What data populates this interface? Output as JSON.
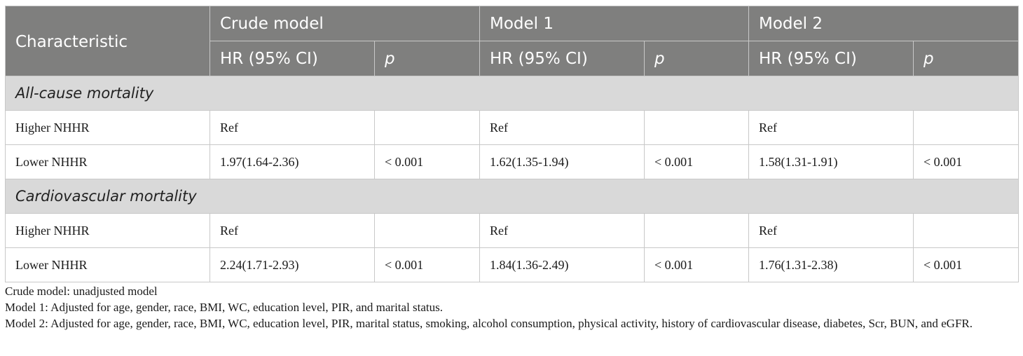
{
  "header": {
    "characteristic": "Characteristic",
    "groups": [
      "Crude model",
      "Model 1",
      "Model 2"
    ],
    "hr_label": "HR (95% CI)",
    "p_label": "p"
  },
  "sections": [
    {
      "title": "All-cause mortality",
      "rows": [
        {
          "label": "Higher NHHR",
          "crude_hr": "Ref",
          "crude_p": "",
          "m1_hr": "Ref",
          "m1_p": "",
          "m2_hr": "Ref",
          "m2_p": ""
        },
        {
          "label": "Lower NHHR",
          "crude_hr": "1.97(1.64-2.36)",
          "crude_p": "< 0.001",
          "m1_hr": "1.62(1.35-1.94)",
          "m1_p": "< 0.001",
          "m2_hr": "1.58(1.31-1.91)",
          "m2_p": "< 0.001"
        }
      ]
    },
    {
      "title": "Cardiovascular mortality",
      "rows": [
        {
          "label": "Higher NHHR",
          "crude_hr": "Ref",
          "crude_p": "",
          "m1_hr": "Ref",
          "m1_p": "",
          "m2_hr": "Ref",
          "m2_p": ""
        },
        {
          "label": "Lower NHHR",
          "crude_hr": "2.24(1.71-2.93)",
          "crude_p": "< 0.001",
          "m1_hr": "1.84(1.36-2.49)",
          "m1_p": "< 0.001",
          "m2_hr": "1.76(1.31-2.38)",
          "m2_p": "< 0.001"
        }
      ]
    }
  ],
  "footnotes": [
    "Crude model: unadjusted model",
    "Model 1: Adjusted for age, gender, race, BMI, WC, education level, PIR, and marital status.",
    "Model 2: Adjusted for age, gender, race, BMI, WC, education level, PIR, marital status, smoking, alcohol consumption, physical activity, history of cardiovascular disease, diabetes, Scr, BUN, and eGFR."
  ],
  "colors": {
    "header_bg": "#7f7f7e",
    "section_bg": "#d9d9d9",
    "border": "#c8c8c8"
  }
}
